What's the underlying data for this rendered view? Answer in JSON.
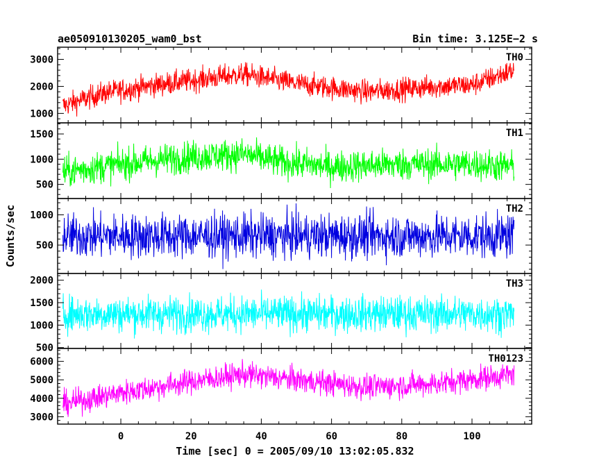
{
  "header": {
    "title": "ae050910130205_wam0_bst",
    "bin_time": "Bin time: 3.125E−2 s"
  },
  "chart_data": {
    "type": "line",
    "xlabel": "Time [sec] 0 = 2005/09/10 13:02:05.832",
    "ylabel": "Counts/sec",
    "xlim": [
      -18,
      117
    ],
    "x_ticks": [
      0,
      20,
      40,
      60,
      80,
      100
    ],
    "x_tick_labels": [
      "0",
      "20",
      "40",
      "60",
      "80",
      "100"
    ],
    "x_range": [
      -16.5,
      112
    ],
    "panels": [
      {
        "name": "TH0",
        "color": "#ff0000",
        "ylim": [
          650,
          3450
        ],
        "y_ticks": [
          1000,
          2000,
          3000
        ],
        "y_tick_labels": [
          "1000",
          "2000",
          "3000"
        ],
        "trend_x": [
          -16,
          -5,
          10,
          25,
          35,
          50,
          70,
          90,
          100,
          112
        ],
        "trend_y": [
          1300,
          1750,
          2050,
          2300,
          2450,
          2100,
          1800,
          2000,
          2050,
          2600
        ],
        "spread": 350
      },
      {
        "name": "TH1",
        "color": "#00ff00",
        "ylim": [
          220,
          1720
        ],
        "y_ticks": [
          500,
          1000,
          1500
        ],
        "y_tick_labels": [
          "500",
          "1000",
          "1500"
        ],
        "trend_x": [
          -16,
          0,
          20,
          35,
          45,
          60,
          80,
          100,
          112
        ],
        "trend_y": [
          750,
          900,
          1050,
          1100,
          950,
          850,
          900,
          900,
          850
        ],
        "spread": 260
      },
      {
        "name": "TH2",
        "color": "#0000e0",
        "ylim": [
          30,
          1270
        ],
        "y_ticks": [
          500,
          1000
        ],
        "y_tick_labels": [
          "500",
          "1000"
        ],
        "trend_x": [
          -16,
          112
        ],
        "trend_y": [
          650,
          650
        ],
        "spread": 300
      },
      {
        "name": "TH3",
        "color": "#00ffff",
        "ylim": [
          480,
          2150
        ],
        "y_ticks": [
          500,
          1000,
          1500,
          2000
        ],
        "y_tick_labels": [
          "500",
          "1000",
          "1500",
          "2000"
        ],
        "trend_x": [
          -16,
          112
        ],
        "trend_y": [
          1250,
          1250
        ],
        "spread": 330
      },
      {
        "name": "TH0123",
        "color": "#ff00ff",
        "ylim": [
          2600,
          6700
        ],
        "y_ticks": [
          3000,
          4000,
          5000,
          6000
        ],
        "y_tick_labels": [
          "3000",
          "4000",
          "5000",
          "6000"
        ],
        "trend_x": [
          -16,
          0,
          20,
          35,
          50,
          70,
          90,
          112
        ],
        "trend_y": [
          3700,
          4300,
          4900,
          5300,
          5000,
          4600,
          4800,
          5300
        ],
        "spread": 550
      }
    ]
  }
}
